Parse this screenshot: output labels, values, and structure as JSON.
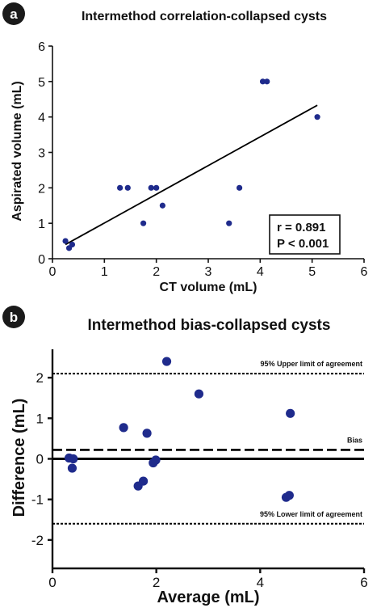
{
  "colors": {
    "point": "#1f2b8c",
    "line": "#000000"
  },
  "chart_data": [
    {
      "panel": "a",
      "type": "scatter",
      "title": "Intermethod correlation-collapsed cysts",
      "xlabel": "CT volume (mL)",
      "ylabel": "Aspirated volume (mL)",
      "xlim": [
        0,
        6
      ],
      "ylim": [
        0,
        6
      ],
      "xticks": [
        0,
        1,
        2,
        3,
        4,
        5,
        6
      ],
      "yticks": [
        0,
        1,
        2,
        3,
        4,
        5,
        6
      ],
      "points": [
        {
          "x": 0.25,
          "y": 0.5
        },
        {
          "x": 0.32,
          "y": 0.3
        },
        {
          "x": 0.38,
          "y": 0.4
        },
        {
          "x": 1.3,
          "y": 2.0
        },
        {
          "x": 1.45,
          "y": 2.0
        },
        {
          "x": 1.75,
          "y": 1.0
        },
        {
          "x": 1.9,
          "y": 2.0
        },
        {
          "x": 2.0,
          "y": 2.0
        },
        {
          "x": 2.12,
          "y": 1.5
        },
        {
          "x": 3.4,
          "y": 1.0
        },
        {
          "x": 3.6,
          "y": 2.0
        },
        {
          "x": 4.05,
          "y": 5.0
        },
        {
          "x": 4.13,
          "y": 5.0
        },
        {
          "x": 5.1,
          "y": 4.0
        }
      ],
      "regression": {
        "x": [
          0.25,
          5.1
        ],
        "y": [
          0.4,
          4.33
        ]
      },
      "stats": [
        "r = 0.891",
        "P < 0.001"
      ]
    },
    {
      "panel": "b",
      "type": "scatter",
      "title": "Intermethod bias-collapsed cysts",
      "xlabel": "Average (mL)",
      "ylabel": "Difference (mL)",
      "xlim": [
        0,
        6
      ],
      "ylim": [
        -2.7,
        2.7
      ],
      "xticks": [
        0,
        2,
        4,
        6
      ],
      "yticks": [
        -2,
        -1,
        0,
        1,
        2
      ],
      "points": [
        {
          "x": 0.32,
          "y": 0.02
        },
        {
          "x": 0.4,
          "y": 0.0
        },
        {
          "x": 0.38,
          "y": -0.23
        },
        {
          "x": 1.37,
          "y": 0.77
        },
        {
          "x": 1.65,
          "y": -0.67
        },
        {
          "x": 1.75,
          "y": -0.55
        },
        {
          "x": 1.82,
          "y": 0.63
        },
        {
          "x": 1.94,
          "y": -0.1
        },
        {
          "x": 1.99,
          "y": -0.03
        },
        {
          "x": 2.2,
          "y": 2.4
        },
        {
          "x": 2.82,
          "y": 1.6
        },
        {
          "x": 4.5,
          "y": -0.95
        },
        {
          "x": 4.56,
          "y": -0.9
        },
        {
          "x": 4.58,
          "y": 1.12
        }
      ],
      "reference_lines": [
        {
          "y": 2.1,
          "style": "dotted",
          "label": "95% Upper limit of agreement"
        },
        {
          "y": 0.22,
          "style": "dashed",
          "label": "Bias"
        },
        {
          "y": 0.0,
          "style": "solid",
          "label": ""
        },
        {
          "y": -1.6,
          "style": "dotted",
          "label": "95% Lower limit of agreement"
        }
      ]
    }
  ]
}
